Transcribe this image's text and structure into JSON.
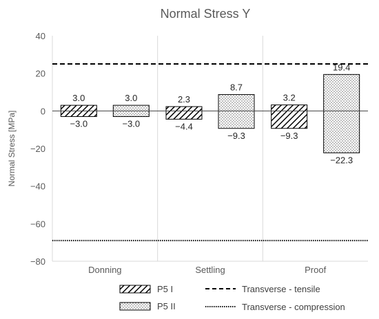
{
  "chart_data": {
    "type": "bar",
    "title": "Normal Stress Y",
    "ylabel": "Normal Stress [MPa]",
    "xlabel": "",
    "categories": [
      "Donning",
      "Settling",
      "Proof"
    ],
    "ylim": [
      -80,
      40
    ],
    "yticks": [
      40,
      20,
      0,
      -20,
      -40,
      -60,
      -80
    ],
    "ytick_labels": [
      "40",
      "20",
      "0",
      "−20",
      "−40",
      "−60",
      "−80"
    ],
    "grid": "vertical category separators",
    "legend_position": "bottom",
    "series": [
      {
        "name": "P5 I",
        "pattern": "diagonal-hatch",
        "max": [
          3.0,
          2.3,
          3.2
        ],
        "min": [
          -3.0,
          -4.4,
          -9.3
        ],
        "max_labels": [
          "3.0",
          "2.3",
          "3.2"
        ],
        "min_labels": [
          "−3.0",
          "−4.4",
          "−9.3"
        ]
      },
      {
        "name": "P5 II",
        "pattern": "dots",
        "max": [
          3.0,
          8.7,
          19.4
        ],
        "min": [
          -3.0,
          -9.3,
          -22.3
        ],
        "max_labels": [
          "3.0",
          "8.7",
          "19.4"
        ],
        "min_labels": [
          "−3.0",
          "−9.3",
          "−22.3"
        ]
      }
    ],
    "reference_lines": [
      {
        "name": "Transverse - tensile",
        "value": 25,
        "style": "dashed"
      },
      {
        "name": "Transverse - compression",
        "value": -69,
        "style": "dotted"
      }
    ],
    "colors": {
      "bar_stroke": "#000000",
      "text": "#595959",
      "separator": "#d9d9d9"
    }
  }
}
